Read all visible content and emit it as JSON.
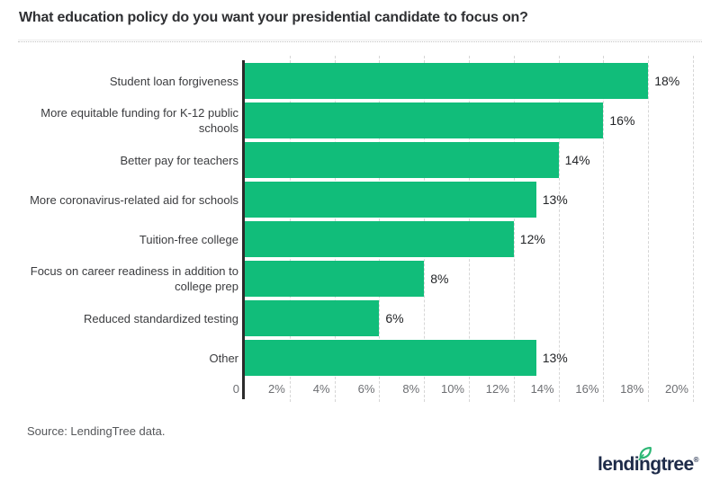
{
  "title": "What education policy do you want your presidential candidate to focus on?",
  "source_note": "Source: LendingTree data.",
  "logo": {
    "text": "lendingtree",
    "registered_mark": "®",
    "text_color": "#1e2b49",
    "leaf_color": "#2bb673"
  },
  "colors": {
    "bar": "#11bd7a",
    "axis": "#2b2b2b",
    "gridline": "#d6d6d6",
    "title_text": "#2f3033",
    "category_text": "#3b3c3f",
    "value_text": "#222427",
    "tick_text": "#6d6f73",
    "source_text": "#55575a"
  },
  "chart_data": {
    "type": "bar",
    "orientation": "horizontal",
    "title": "What education policy do you want your presidential candidate to focus on?",
    "categories": [
      "Student loan forgiveness",
      "More equitable funding for K-12 public schools",
      "Better pay for teachers",
      "More coronavirus-related aid for schools",
      "Tuition-free college",
      "Focus on career readiness in addition to college prep",
      "Reduced standardized testing",
      "Other"
    ],
    "values": [
      18,
      16,
      14,
      13,
      12,
      8,
      6,
      13
    ],
    "value_labels": [
      "18%",
      "16%",
      "14%",
      "13%",
      "12%",
      "8%",
      "6%",
      "13%"
    ],
    "x_ticks": [
      "0",
      "2%",
      "4%",
      "6%",
      "8%",
      "10%",
      "12%",
      "14%",
      "16%",
      "18%",
      "20%"
    ],
    "xlabel": "",
    "ylabel": "",
    "xlim": [
      0,
      20
    ],
    "grid": true,
    "legend": false,
    "bar_color": "#11bd7a"
  }
}
